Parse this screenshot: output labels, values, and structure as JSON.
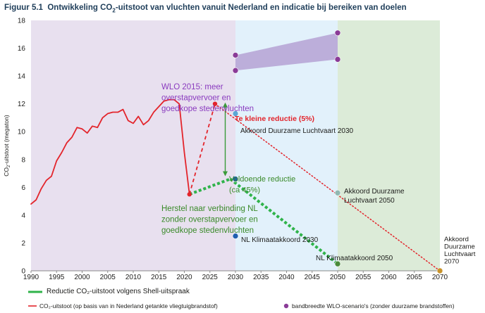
{
  "figure": {
    "prefix": "Figuur 5.1",
    "title_pre": "Ontwikkeling CO",
    "title_sub": "2",
    "title_post": "-uitstoot van vluchten vanuit Nederland en indicatie bij bereiken van doelen"
  },
  "legend": {
    "shell": "Reductie CO₂-uitstoot volgens Shell-uitspraak",
    "emissions": "CO₂-uitstoot (op basis van in Nederland getankte vliegtuigbrandstof)",
    "wlo": "bandbreedte WLO-scenario's (zonder duurzame brandstoffen)"
  },
  "colors": {
    "title": "#1f3e5a",
    "emissions_red": "#e3242b",
    "shell_green": "#2fb34a",
    "wlo_purple": "#8a3b97",
    "wlo_band": "#b8a6d6",
    "zone_history": "#e8e0ef",
    "zone_2030_2050": "#e2f1fb",
    "zone_2050_2070": "#dcebd8",
    "akkoord_blue": "#5ba7d6",
    "klimaat_blue": "#1f5fb0",
    "target_grey": "#8fb8b2",
    "final_gold": "#c9932a",
    "final_green": "#4a8a3a",
    "arrow_green": "#3a9a3a",
    "purple_text": "#8a3bbf",
    "green_text": "#3a8a2a",
    "red_text": "#e3242b"
  },
  "chart_data": {
    "type": "line",
    "x_range": [
      1990,
      2070
    ],
    "ylim": [
      0,
      18
    ],
    "ylabel_pre": "CO",
    "ylabel_sub": "2",
    "ylabel_post": "-uitstoot (megaton)",
    "x_ticks": [
      1990,
      1995,
      2000,
      2005,
      2010,
      2015,
      2020,
      2025,
      2030,
      2035,
      2040,
      2045,
      2050,
      2055,
      2060,
      2065,
      2070
    ],
    "y_ticks": [
      0,
      2,
      4,
      6,
      8,
      10,
      12,
      14,
      16,
      18
    ],
    "grid": false,
    "zones": [
      {
        "from": 1990,
        "to": 2030,
        "fill": "zone_history"
      },
      {
        "from": 2030,
        "to": 2050,
        "fill": "zone_2030_2050"
      },
      {
        "from": 2050,
        "to": 2070,
        "fill": "zone_2050_2070"
      }
    ],
    "series": [
      {
        "key": "historical",
        "style": "solid",
        "color": "emissions_red",
        "x": [
          1990,
          1991,
          1992,
          1993,
          1994,
          1995,
          1996,
          1997,
          1998,
          1999,
          2000,
          2001,
          2002,
          2003,
          2004,
          2005,
          2006,
          2007,
          2008,
          2009,
          2010,
          2011,
          2012,
          2013,
          2014,
          2015,
          2016,
          2017,
          2018,
          2019,
          2020,
          2021
        ],
        "y": [
          4.8,
          5.1,
          5.9,
          6.5,
          6.8,
          7.9,
          8.5,
          9.2,
          9.6,
          10.3,
          10.2,
          9.9,
          10.4,
          10.3,
          11.0,
          11.3,
          11.4,
          11.4,
          11.6,
          10.8,
          10.6,
          11.1,
          10.5,
          10.8,
          11.4,
          11.8,
          12.2,
          12.3,
          12.3,
          12.0,
          8.5,
          5.5
        ]
      },
      {
        "key": "recovery",
        "style": "dashed",
        "color": "emissions_red",
        "x": [
          2021,
          2026
        ],
        "y": [
          5.5,
          12.0
        ]
      },
      {
        "key": "too_small_reduction",
        "style": "dotted",
        "color": "emissions_red",
        "x": [
          2026,
          2070
        ],
        "y": [
          12.0,
          0.0
        ]
      },
      {
        "key": "shell_recovery",
        "style": "green_dotted",
        "color": "shell_green",
        "x": [
          2021,
          2029
        ],
        "y": [
          5.5,
          6.6
        ]
      },
      {
        "key": "shell_reduction",
        "style": "green_dotted",
        "color": "shell_green",
        "x": [
          2029,
          2050
        ],
        "y": [
          6.6,
          0.5
        ]
      }
    ],
    "wlo_band": {
      "x": [
        2030,
        2050
      ],
      "lower": [
        14.4,
        15.2
      ],
      "upper": [
        15.5,
        17.1
      ]
    },
    "points": [
      {
        "x": 2030,
        "y": 15.5,
        "color": "wlo_purple"
      },
      {
        "x": 2030,
        "y": 14.4,
        "color": "wlo_purple"
      },
      {
        "x": 2050,
        "y": 17.1,
        "color": "wlo_purple"
      },
      {
        "x": 2050,
        "y": 15.2,
        "color": "wlo_purple"
      },
      {
        "x": 2030,
        "y": 11.3,
        "color": "akkoord_blue"
      },
      {
        "x": 2050,
        "y": 5.6,
        "color": "target_grey"
      },
      {
        "x": 2070,
        "y": 0.0,
        "color": "final_gold"
      },
      {
        "x": 2030,
        "y": 6.6,
        "color": "klimaat_blue"
      },
      {
        "x": 2030,
        "y": 2.5,
        "color": "klimaat_blue"
      },
      {
        "x": 2050,
        "y": 0.5,
        "color": "final_green"
      }
    ],
    "arrow": {
      "x": 2028,
      "y_top": 12.1,
      "y_bottom": 6.8
    },
    "annotations": {
      "wlo_lines": [
        "WLO 2015: meer",
        "overstapvervoer en",
        "goedkope stedenvluchten"
      ],
      "te_kleine": "Te kleine reductie (5%)",
      "akkoord_2030": "Akkoord Duurzame Luchtvaart 2030",
      "voldoende_lines": [
        "Voldoende reductie",
        "(ca 45%)"
      ],
      "herstel_lines": [
        "Herstel naar verbinding NL",
        "zonder overstapvervoer en",
        "goedkope stedenvluchten"
      ],
      "nl_klimaat_2030": "NL Klimaatakkoord 2030",
      "akkoord_2050_lines": [
        "Akkoord Duurzame",
        "Luchtvaart 2050"
      ],
      "nl_klimaat_2050": "NL Klimaatakkoord 2050",
      "akkoord_2070_lines": [
        "Akkoord",
        "Duurzame",
        "Luchtvaart",
        "2070"
      ]
    }
  }
}
